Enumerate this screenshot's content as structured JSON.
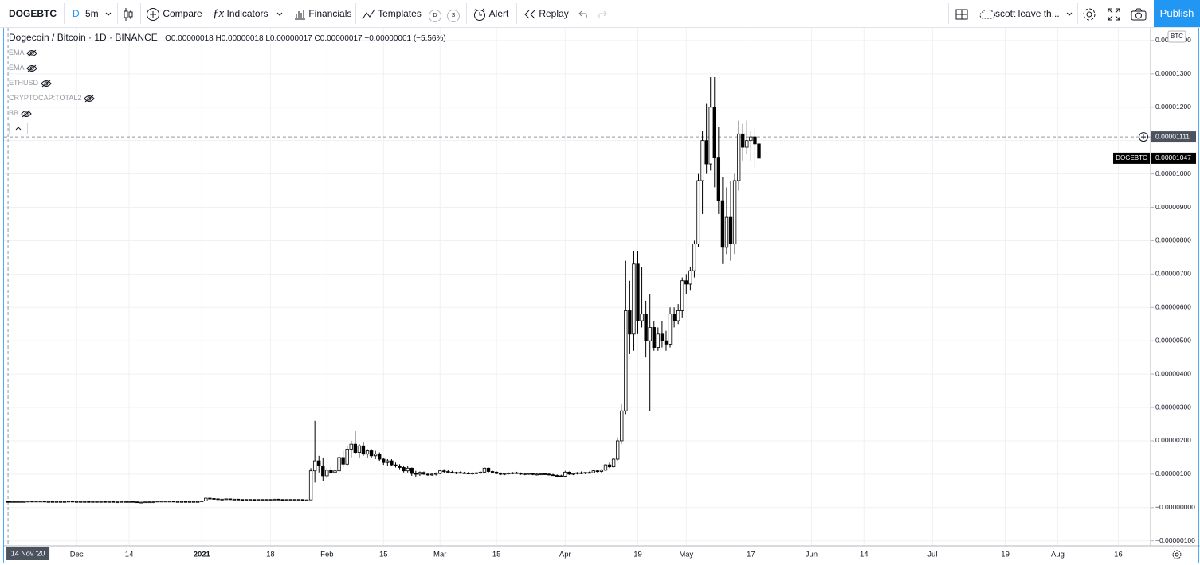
{
  "toolbar": {
    "symbol": "DOGEBTC",
    "interval_letter": "D",
    "interval": "5m",
    "compare": "Compare",
    "indicators": "Indicators",
    "financials": "Financials",
    "templates": "Templates",
    "template_d": "D",
    "template_s": "S",
    "alert": "Alert",
    "replay": "Replay",
    "layout": "scott leave th...",
    "publish": "Publish"
  },
  "legend": {
    "title": "Dogecoin / Bitcoin · 1D · BINANCE",
    "ohlc": [
      {
        "key": "O",
        "value": "0.00000018"
      },
      {
        "key": "H",
        "value": "0.00000018"
      },
      {
        "key": "L",
        "value": "0.00000017"
      },
      {
        "key": "C",
        "value": "0.00000017"
      }
    ],
    "change": "−0.00000001 (−5.56%)",
    "indicators": [
      "EMA",
      "EMA",
      "ETHUSD",
      "CRYPTOCAP:TOTAL2",
      "BB"
    ]
  },
  "chart_data": {
    "type": "candlestick",
    "currency": "BTC",
    "up_color": "#ffffff",
    "down_color": "#000000",
    "wick_color": "#000000",
    "grid": true,
    "x": [
      "2020-11-14",
      "2020-11-15",
      "2020-11-16",
      "2020-11-17",
      "2020-11-18",
      "2020-11-19",
      "2020-11-20",
      "2020-11-21",
      "2020-11-22",
      "2020-11-23",
      "2020-11-24",
      "2020-11-25",
      "2020-11-26",
      "2020-11-27",
      "2020-11-28",
      "2020-11-29",
      "2020-11-30",
      "2020-12-01",
      "2020-12-02",
      "2020-12-03",
      "2020-12-04",
      "2020-12-05",
      "2020-12-06",
      "2020-12-07",
      "2020-12-08",
      "2020-12-09",
      "2020-12-10",
      "2020-12-11",
      "2020-12-12",
      "2020-12-13",
      "2020-12-14",
      "2020-12-15",
      "2020-12-16",
      "2020-12-17",
      "2020-12-18",
      "2020-12-19",
      "2020-12-20",
      "2020-12-21",
      "2020-12-22",
      "2020-12-23",
      "2020-12-24",
      "2020-12-25",
      "2020-12-26",
      "2020-12-27",
      "2020-12-28",
      "2020-12-29",
      "2020-12-30",
      "2020-12-31",
      "2021-01-01",
      "2021-01-02",
      "2021-01-03",
      "2021-01-04",
      "2021-01-05",
      "2021-01-06",
      "2021-01-07",
      "2021-01-08",
      "2021-01-09",
      "2021-01-10",
      "2021-01-11",
      "2021-01-12",
      "2021-01-13",
      "2021-01-14",
      "2021-01-15",
      "2021-01-16",
      "2021-01-17",
      "2021-01-18",
      "2021-01-19",
      "2021-01-20",
      "2021-01-21",
      "2021-01-22",
      "2021-01-23",
      "2021-01-24",
      "2021-01-25",
      "2021-01-26",
      "2021-01-27",
      "2021-01-28",
      "2021-01-29",
      "2021-01-30",
      "2021-01-31",
      "2021-02-01",
      "2021-02-02",
      "2021-02-03",
      "2021-02-04",
      "2021-02-05",
      "2021-02-06",
      "2021-02-07",
      "2021-02-08",
      "2021-02-09",
      "2021-02-10",
      "2021-02-11",
      "2021-02-12",
      "2021-02-13",
      "2021-02-14",
      "2021-02-15",
      "2021-02-16",
      "2021-02-17",
      "2021-02-18",
      "2021-02-19",
      "2021-02-20",
      "2021-02-21",
      "2021-02-22",
      "2021-02-23",
      "2021-02-24",
      "2021-02-25",
      "2021-02-26",
      "2021-02-27",
      "2021-02-28",
      "2021-03-01",
      "2021-03-02",
      "2021-03-03",
      "2021-03-04",
      "2021-03-05",
      "2021-03-06",
      "2021-03-07",
      "2021-03-08",
      "2021-03-09",
      "2021-03-10",
      "2021-03-11",
      "2021-03-12",
      "2021-03-13",
      "2021-03-14",
      "2021-03-15",
      "2021-03-16",
      "2021-03-17",
      "2021-03-18",
      "2021-03-19",
      "2021-03-20",
      "2021-03-21",
      "2021-03-22",
      "2021-03-23",
      "2021-03-24",
      "2021-03-25",
      "2021-03-26",
      "2021-03-27",
      "2021-03-28",
      "2021-03-29",
      "2021-03-30",
      "2021-03-31",
      "2021-04-01",
      "2021-04-02",
      "2021-04-03",
      "2021-04-04",
      "2021-04-05",
      "2021-04-06",
      "2021-04-07",
      "2021-04-08",
      "2021-04-09",
      "2021-04-10",
      "2021-04-11",
      "2021-04-12",
      "2021-04-13",
      "2021-04-14",
      "2021-04-15",
      "2021-04-16",
      "2021-04-17",
      "2021-04-18",
      "2021-04-19",
      "2021-04-20",
      "2021-04-21",
      "2021-04-22",
      "2021-04-23",
      "2021-04-24",
      "2021-04-25",
      "2021-04-26",
      "2021-04-27",
      "2021-04-28",
      "2021-04-29",
      "2021-04-30",
      "2021-05-01",
      "2021-05-02",
      "2021-05-03",
      "2021-05-04",
      "2021-05-05",
      "2021-05-06",
      "2021-05-07",
      "2021-05-08",
      "2021-05-09",
      "2021-05-10",
      "2021-05-11",
      "2021-05-12",
      "2021-05-13",
      "2021-05-14",
      "2021-05-15",
      "2021-05-16",
      "2021-05-17",
      "2021-05-18",
      "2021-05-19"
    ],
    "open": [
      1.8e-07,
      1.7e-07,
      1.8e-07,
      1.8e-07,
      1.8e-07,
      1.8e-07,
      1.9e-07,
      1.8e-07,
      1.9e-07,
      1.9e-07,
      1.8e-07,
      1.8e-07,
      1.7e-07,
      1.8e-07,
      1.8e-07,
      1.8e-07,
      1.9e-07,
      1.8e-07,
      1.8e-07,
      1.8e-07,
      1.8e-07,
      1.7e-07,
      1.8e-07,
      1.8e-07,
      1.8e-07,
      1.7e-07,
      1.8e-07,
      1.7e-07,
      1.7e-07,
      1.8e-07,
      1.8e-07,
      1.8e-07,
      1.7e-07,
      1.6e-07,
      1.6e-07,
      1.7e-07,
      1.7e-07,
      1.7e-07,
      1.9e-07,
      1.9e-07,
      1.9e-07,
      1.9e-07,
      1.8e-07,
      1.8e-07,
      1.8e-07,
      1.7e-07,
      1.8e-07,
      1.8e-07,
      1.8e-07,
      2e-07,
      2.8e-07,
      2.7e-07,
      2.6e-07,
      2.5e-07,
      2.5e-07,
      2.6e-07,
      2.5e-07,
      2.5e-07,
      2.4e-07,
      2.3e-07,
      2.4e-07,
      2.4e-07,
      2.3e-07,
      2.4e-07,
      2.4e-07,
      2.4e-07,
      2.4e-07,
      2.5e-07,
      2.4e-07,
      2.3e-07,
      2.4e-07,
      2.4e-07,
      2.4e-07,
      2.4e-07,
      2.3e-07,
      2.3e-07,
      1.1e-06,
      1.4e-06,
      1.25e-06,
      9.5e-07,
      1.12e-06,
      1.05e-06,
      1.1e-06,
      1.5e-06,
      1.3e-06,
      1.75e-06,
      1.9e-06,
      1.65e-06,
      1.85e-06,
      1.6e-06,
      1.7e-06,
      1.55e-06,
      1.6e-06,
      1.45e-06,
      1.35e-06,
      1.4e-06,
      1.28e-06,
      1.25e-06,
      1.2e-06,
      1.1e-06,
      1.18e-06,
      1.02e-06,
      1e-06,
      1.05e-06,
      1e-06,
      9.8e-07,
      1e-06,
      1.02e-06,
      1.1e-06,
      1.08e-06,
      1.06e-06,
      1.04e-06,
      1.05e-06,
      1.04e-06,
      1.03e-06,
      1.02e-06,
      1.03e-06,
      1.04e-06,
      1.06e-06,
      1.18e-06,
      1.08e-06,
      1.06e-06,
      1.02e-06,
      1e-06,
      1.02e-06,
      1.03e-06,
      1.04e-06,
      1.03e-06,
      1e-06,
      1.01e-06,
      1.02e-06,
      9.9e-07,
      1e-06,
      1.01e-06,
      1e-06,
      9.8e-07,
      9.6e-07,
      9.5e-07,
      9.4e-07,
      1.06e-06,
      1e-06,
      1.02e-06,
      1.04e-06,
      1.03e-06,
      1.05e-06,
      1.04e-06,
      1.1e-06,
      1.08e-06,
      1.12e-06,
      1.28e-06,
      1.22e-06,
      1.45e-06,
      2e-06,
      2.9e-06,
      5.9e-06,
      5.2e-06,
      7.3e-06,
      5.6e-06,
      5.8e-06,
      5e-06,
      5.4e-06,
      4.8e-06,
      5.2e-06,
      5e-06,
      4.9e-06,
      5.8e-06,
      5.6e-06,
      5.9e-06,
      6.8e-06,
      6.7e-06,
      7.1e-06,
      7.9e-06,
      9.8e-06,
      1.1e-05,
      1.03e-05,
      1.2e-05,
      1.05e-05,
      9.2e-06,
      7.8e-06,
      8.7e-06,
      7.9e-06,
      9.8e-06,
      1.12e-05,
      1.08e-05,
      1.1e-05,
      1.111e-05,
      1.09e-05
    ],
    "high": [
      1.8e-07,
      1.8e-07,
      1.9e-07,
      1.9e-07,
      1.9e-07,
      1.9e-07,
      1.9e-07,
      1.9e-07,
      2e-07,
      2e-07,
      1.9e-07,
      1.8e-07,
      1.8e-07,
      1.9e-07,
      1.9e-07,
      1.9e-07,
      1.9e-07,
      1.9e-07,
      1.8e-07,
      1.9e-07,
      1.8e-07,
      1.8e-07,
      1.8e-07,
      1.9e-07,
      1.8e-07,
      1.8e-07,
      1.8e-07,
      1.8e-07,
      1.8e-07,
      1.8e-07,
      1.9e-07,
      1.8e-07,
      1.8e-07,
      1.7e-07,
      1.7e-07,
      1.8e-07,
      1.8e-07,
      1.9e-07,
      2e-07,
      2e-07,
      2e-07,
      1.9e-07,
      1.9e-07,
      1.9e-07,
      1.8e-07,
      1.8e-07,
      1.8e-07,
      1.9e-07,
      2.1e-07,
      3e-07,
      3.2e-07,
      2.9e-07,
      2.7e-07,
      2.6e-07,
      2.7e-07,
      2.7e-07,
      2.6e-07,
      2.6e-07,
      2.5e-07,
      2.5e-07,
      2.5e-07,
      2.5e-07,
      2.4e-07,
      2.5e-07,
      2.5e-07,
      2.5e-07,
      2.5e-07,
      2.6e-07,
      2.5e-07,
      2.4e-07,
      2.5e-07,
      2.5e-07,
      2.5e-07,
      2.4e-07,
      2.4e-07,
      1.18e-06,
      2.6e-06,
      1.55e-06,
      1.5e-06,
      1.18e-06,
      1.22e-06,
      1.15e-06,
      1.6e-06,
      1.7e-06,
      1.85e-06,
      2e-06,
      2.3e-06,
      1.9e-06,
      1.95e-06,
      1.75e-06,
      1.75e-06,
      1.7e-06,
      1.65e-06,
      1.5e-06,
      1.45e-06,
      1.45e-06,
      1.35e-06,
      1.3e-06,
      1.25e-06,
      1.25e-06,
      1.2e-06,
      1.1e-06,
      1.08e-06,
      1.08e-06,
      1.04e-06,
      1.02e-06,
      1.05e-06,
      1.12e-06,
      1.15e-06,
      1.12e-06,
      1.1e-06,
      1.07e-06,
      1.08e-06,
      1.07e-06,
      1.06e-06,
      1.05e-06,
      1.06e-06,
      1.08e-06,
      1.2e-06,
      1.2e-06,
      1.1e-06,
      1.08e-06,
      1.05e-06,
      1.04e-06,
      1.05e-06,
      1.06e-06,
      1.07e-06,
      1.05e-06,
      1.03e-06,
      1.04e-06,
      1.04e-06,
      1.02e-06,
      1.03e-06,
      1.03e-06,
      1.02e-06,
      1.01e-06,
      9.9e-07,
      9.8e-07,
      1.1e-06,
      1.08e-06,
      1.04e-06,
      1.06e-06,
      1.08e-06,
      1.06e-06,
      1.08e-06,
      1.12e-06,
      1.13e-06,
      1.15e-06,
      1.3e-06,
      1.35e-06,
      1.5e-06,
      2.1e-06,
      3.1e-06,
      7.4e-06,
      6.8e-06,
      7.7e-06,
      7.7e-06,
      7.2e-06,
      6.2e-06,
      6.4e-06,
      5.6e-06,
      5.4e-06,
      5.6e-06,
      5.3e-06,
      6e-06,
      6e-06,
      6.1e-06,
      6.9e-06,
      7e-06,
      7.2e-06,
      8e-06,
      1e-05,
      1.13e-05,
      1.21e-05,
      1.29e-05,
      1.29e-05,
      1.14e-05,
      9.9e-06,
      9.6e-06,
      9.8e-06,
      1e-05,
      1.16e-05,
      1.15e-05,
      1.16e-05,
      1.13e-05,
      1.14e-05,
      1.11e-05
    ],
    "low": [
      1.7e-07,
      1.7e-07,
      1.7e-07,
      1.8e-07,
      1.7e-07,
      1.8e-07,
      1.8e-07,
      1.8e-07,
      1.8e-07,
      1.8e-07,
      1.7e-07,
      1.7e-07,
      1.6e-07,
      1.7e-07,
      1.8e-07,
      1.8e-07,
      1.8e-07,
      1.7e-07,
      1.7e-07,
      1.8e-07,
      1.7e-07,
      1.7e-07,
      1.7e-07,
      1.8e-07,
      1.7e-07,
      1.7e-07,
      1.7e-07,
      1.6e-07,
      1.7e-07,
      1.7e-07,
      1.7e-07,
      1.7e-07,
      1.6e-07,
      1.5e-07,
      1.6e-07,
      1.6e-07,
      1.6e-07,
      1.7e-07,
      1.8e-07,
      1.8e-07,
      1.8e-07,
      1.8e-07,
      1.7e-07,
      1.7e-07,
      1.7e-07,
      1.7e-07,
      1.7e-07,
      1.7e-07,
      1.7e-07,
      1.9e-07,
      2.5e-07,
      2.4e-07,
      2.4e-07,
      2.3e-07,
      2.4e-07,
      2.4e-07,
      2.4e-07,
      2.3e-07,
      2.2e-07,
      2.2e-07,
      2.3e-07,
      2.3e-07,
      2.2e-07,
      2.3e-07,
      2.3e-07,
      2.3e-07,
      2.3e-07,
      2.4e-07,
      2.2e-07,
      2.2e-07,
      2.3e-07,
      2.3e-07,
      2.3e-07,
      2.2e-07,
      2.2e-07,
      2.2e-07,
      7.5e-07,
      1.05e-06,
      8e-07,
      8.8e-07,
      1e-06,
      9.8e-07,
      1.05e-06,
      1.2e-06,
      1.25e-06,
      1.5e-06,
      1.6e-06,
      1.5e-06,
      1.55e-06,
      1.5e-06,
      1.5e-06,
      1.45e-06,
      1.4e-06,
      1.28e-06,
      1.25e-06,
      1.25e-06,
      1.2e-06,
      1.15e-06,
      1.05e-06,
      1.05e-06,
      9.5e-07,
      9e-07,
      9.5e-07,
      9.8e-07,
      9.5e-07,
      9.5e-07,
      9.6e-07,
      1e-06,
      1.04e-06,
      1.04e-06,
      1.02e-06,
      1e-06,
      1.02e-06,
      1.01e-06,
      1e-06,
      9.9e-07,
      1e-06,
      1.01e-06,
      1.04e-06,
      1.05e-06,
      1.04e-06,
      1e-06,
      9.7e-07,
      9.7e-07,
      9.9e-07,
      1e-06,
      1.01e-06,
      9.8e-07,
      9.7e-07,
      9.8e-07,
      9.7e-07,
      9.6e-07,
      9.7e-07,
      9.8e-07,
      9.6e-07,
      9.5e-07,
      9.3e-07,
      9.2e-07,
      9.2e-07,
      9.8e-07,
      9.7e-07,
      9.9e-07,
      1e-06,
      1e-06,
      1.02e-06,
      1.03e-06,
      1.05e-06,
      1.05e-06,
      1.1e-06,
      1.18e-06,
      1.2e-06,
      1.4e-06,
      1.9e-06,
      2.8e-06,
      4.6e-06,
      4.7e-06,
      5.2e-06,
      5.4e-06,
      4.5e-06,
      2.9e-06,
      4.7e-06,
      4.7e-06,
      4.8e-06,
      4.7e-06,
      4.8e-06,
      5.4e-06,
      5.5e-06,
      5.7e-06,
      6.4e-06,
      6.5e-06,
      6.9e-06,
      7.8e-06,
      8.8e-06,
      1e-05,
      1.01e-05,
      9.6e-06,
      8.8e-06,
      7.3e-06,
      7.6e-06,
      7.4e-06,
      7.6e-06,
      9.5e-06,
      1.04e-05,
      1.06e-05,
      1.04e-05,
      1.02e-05,
      9.8e-06
    ],
    "close": [
      1.7e-07,
      1.8e-07,
      1.8e-07,
      1.8e-07,
      1.8e-07,
      1.9e-07,
      1.8e-07,
      1.9e-07,
      1.9e-07,
      1.8e-07,
      1.8e-07,
      1.7e-07,
      1.8e-07,
      1.8e-07,
      1.8e-07,
      1.9e-07,
      1.8e-07,
      1.8e-07,
      1.8e-07,
      1.8e-07,
      1.7e-07,
      1.8e-07,
      1.8e-07,
      1.8e-07,
      1.7e-07,
      1.8e-07,
      1.7e-07,
      1.7e-07,
      1.8e-07,
      1.8e-07,
      1.8e-07,
      1.7e-07,
      1.6e-07,
      1.6e-07,
      1.7e-07,
      1.7e-07,
      1.7e-07,
      1.9e-07,
      1.9e-07,
      1.9e-07,
      1.9e-07,
      1.8e-07,
      1.8e-07,
      1.8e-07,
      1.7e-07,
      1.8e-07,
      1.8e-07,
      1.8e-07,
      2e-07,
      2.8e-07,
      2.7e-07,
      2.6e-07,
      2.5e-07,
      2.5e-07,
      2.6e-07,
      2.5e-07,
      2.5e-07,
      2.4e-07,
      2.3e-07,
      2.4e-07,
      2.4e-07,
      2.3e-07,
      2.4e-07,
      2.4e-07,
      2.4e-07,
      2.4e-07,
      2.5e-07,
      2.4e-07,
      2.3e-07,
      2.4e-07,
      2.4e-07,
      2.4e-07,
      2.4e-07,
      2.3e-07,
      2.3e-07,
      1.1e-06,
      1.4e-06,
      1.25e-06,
      9.5e-07,
      1.12e-06,
      1.05e-06,
      1.1e-06,
      1.5e-06,
      1.3e-06,
      1.75e-06,
      1.9e-06,
      1.65e-06,
      1.85e-06,
      1.6e-06,
      1.7e-06,
      1.55e-06,
      1.6e-06,
      1.45e-06,
      1.35e-06,
      1.4e-06,
      1.28e-06,
      1.25e-06,
      1.2e-06,
      1.1e-06,
      1.18e-06,
      1.02e-06,
      1e-06,
      1.05e-06,
      1e-06,
      9.8e-07,
      1e-06,
      1.02e-06,
      1.1e-06,
      1.08e-06,
      1.06e-06,
      1.04e-06,
      1.05e-06,
      1.04e-06,
      1.03e-06,
      1.02e-06,
      1.03e-06,
      1.04e-06,
      1.06e-06,
      1.18e-06,
      1.08e-06,
      1.06e-06,
      1.02e-06,
      1e-06,
      1.02e-06,
      1.03e-06,
      1.04e-06,
      1.03e-06,
      1e-06,
      1.01e-06,
      1.02e-06,
      9.9e-07,
      1e-06,
      1.01e-06,
      1e-06,
      9.8e-07,
      9.6e-07,
      9.5e-07,
      9.4e-07,
      1.06e-06,
      1e-06,
      1.02e-06,
      1.04e-06,
      1.03e-06,
      1.05e-06,
      1.04e-06,
      1.1e-06,
      1.08e-06,
      1.12e-06,
      1.28e-06,
      1.22e-06,
      1.45e-06,
      2e-06,
      2.9e-06,
      5.9e-06,
      5.2e-06,
      7.3e-06,
      5.6e-06,
      5.8e-06,
      5e-06,
      5.4e-06,
      4.8e-06,
      5.2e-06,
      5e-06,
      4.9e-06,
      5.8e-06,
      5.6e-06,
      5.9e-06,
      6.8e-06,
      6.7e-06,
      7.1e-06,
      7.9e-06,
      9.8e-06,
      1.1e-05,
      1.03e-05,
      1.2e-05,
      1.05e-05,
      9.2e-06,
      7.8e-06,
      8.7e-06,
      7.9e-06,
      9.8e-06,
      1.12e-05,
      1.08e-05,
      1.1e-05,
      1.111e-05,
      1.09e-05,
      1.047e-05
    ],
    "xlim": [
      "2020-11-13",
      "2021-08-24"
    ],
    "xticks": [
      {
        "value": "2020-12-01",
        "label": "Dec"
      },
      {
        "value": "2020-12-14",
        "label": "14"
      },
      {
        "value": "2021-01-01",
        "label": "2021"
      },
      {
        "value": "2021-01-18",
        "label": "18"
      },
      {
        "value": "2021-02-01",
        "label": "Feb"
      },
      {
        "value": "2021-02-15",
        "label": "15"
      },
      {
        "value": "2021-03-01",
        "label": "Mar"
      },
      {
        "value": "2021-03-15",
        "label": "15"
      },
      {
        "value": "2021-04-01",
        "label": "Apr"
      },
      {
        "value": "2021-04-19",
        "label": "19"
      },
      {
        "value": "2021-05-01",
        "label": "May"
      },
      {
        "value": "2021-05-17",
        "label": "17"
      },
      {
        "value": "2021-06-01",
        "label": "Jun"
      },
      {
        "value": "2021-06-14",
        "label": "14"
      },
      {
        "value": "2021-07-01",
        "label": "Jul"
      },
      {
        "value": "2021-07-19",
        "label": "19"
      },
      {
        "value": "2021-08-01",
        "label": "Aug"
      },
      {
        "value": "2021-08-16",
        "label": "16"
      }
    ],
    "ylim": [
      -1.15e-06,
      1.438e-05
    ],
    "yticks": [
      {
        "value": 1.4e-05,
        "label": "0.00001400"
      },
      {
        "value": 1.3e-05,
        "label": "0.00001300"
      },
      {
        "value": 1.2e-05,
        "label": "0.00001200"
      },
      {
        "value": 1.1e-05,
        "label": "0.00001100"
      },
      {
        "value": 1e-05,
        "label": "0.00001000"
      },
      {
        "value": 9e-06,
        "label": "0.00000900"
      },
      {
        "value": 8e-06,
        "label": "0.00000800"
      },
      {
        "value": 7e-06,
        "label": "0.00000700"
      },
      {
        "value": 6e-06,
        "label": "0.00000600"
      },
      {
        "value": 5e-06,
        "label": "0.00000500"
      },
      {
        "value": 4e-06,
        "label": "0.00000400"
      },
      {
        "value": 3e-06,
        "label": "0.00000300"
      },
      {
        "value": 2e-06,
        "label": "0.00000200"
      },
      {
        "value": 1e-06,
        "label": "0.00000100"
      },
      {
        "value": 0,
        "label": "−0.00000000"
      },
      {
        "value": -1e-06,
        "label": "−0.00000100"
      }
    ],
    "crosshair": {
      "x": {
        "value": "2020-11-14",
        "label": "14 Nov '20"
      },
      "y": {
        "value": 1.111e-05,
        "label": "0.00001111"
      }
    },
    "last_price": {
      "name": "DOGEBTC",
      "value": 1.047e-05,
      "label": "0.00001047"
    }
  }
}
